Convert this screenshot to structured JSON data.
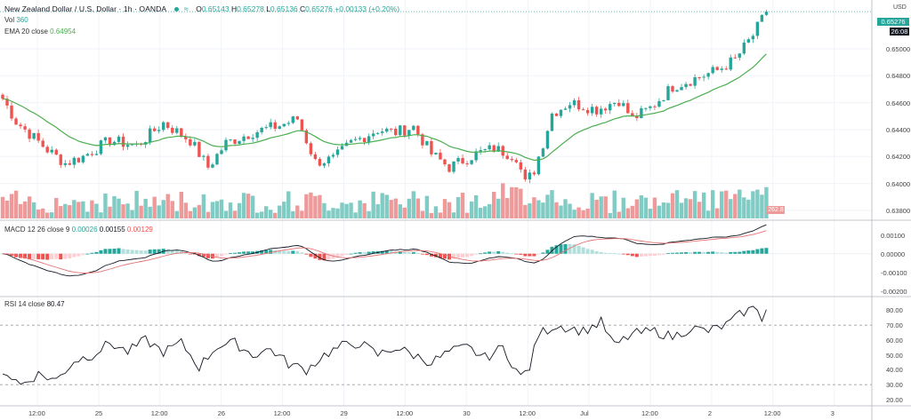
{
  "header": {
    "symbol": "New Zealand Dollar / U.S. Dollar · 1h · OANDA",
    "open_label": "O",
    "open": "0.65143",
    "high_label": "H",
    "high": "0.65278",
    "low_label": "L",
    "low": "0.65136",
    "close_label": "C",
    "close": "0.65276",
    "change": "+0.00133 (+0.20%)",
    "icon": "wave-icon"
  },
  "volume": {
    "label": "Vol",
    "value": "360",
    "last_tag": "262.8"
  },
  "ema": {
    "label": "EMA 20 close",
    "value": "0.64954"
  },
  "macd": {
    "label": "MACD 12 26 close 9",
    "v1": "0.00026",
    "v2": "0.00155",
    "v3": "0.00129"
  },
  "rsi": {
    "label": "RSI 14 close",
    "value": "80.47"
  },
  "currency": "USD",
  "price_tags": {
    "current": "0.65276",
    "timer": "26:08"
  },
  "colors": {
    "up": "#26a69a",
    "down": "#ef5350",
    "ema": "#4caf50",
    "macd": "#131722",
    "signal": "#e57373",
    "rsi": "#131722"
  },
  "chart_data": [
    {
      "type": "candlestick",
      "title": "New Zealand Dollar / U.S. Dollar · 1h · OANDA",
      "y_ticks": [
        "0.65276",
        "0.65000",
        "0.64800",
        "0.64600",
        "0.64400",
        "0.64200",
        "0.64000",
        "0.63800"
      ],
      "ylim": [
        0.6374,
        0.6531
      ],
      "x_ticks": [
        "12:00",
        "25",
        "12:00",
        "26",
        "12:00",
        "29",
        "12:00",
        "30",
        "12:00",
        "Jul",
        "12:00",
        "2",
        "12:00",
        "3"
      ],
      "close_anchors": [
        [
          0,
          0.6463
        ],
        [
          3,
          0.6446
        ],
        [
          10,
          0.6425
        ],
        [
          14,
          0.6415
        ],
        [
          18,
          0.642
        ],
        [
          24,
          0.6432
        ],
        [
          30,
          0.6428
        ],
        [
          36,
          0.6445
        ],
        [
          42,
          0.6432
        ],
        [
          46,
          0.6412
        ],
        [
          50,
          0.643
        ],
        [
          56,
          0.6438
        ],
        [
          62,
          0.6443
        ],
        [
          66,
          0.6448
        ],
        [
          70,
          0.6416
        ],
        [
          74,
          0.6418
        ],
        [
          78,
          0.643
        ],
        [
          84,
          0.644
        ],
        [
          88,
          0.6438
        ],
        [
          92,
          0.6442
        ],
        [
          96,
          0.6422
        ],
        [
          100,
          0.6412
        ],
        [
          106,
          0.6422
        ],
        [
          110,
          0.6426
        ],
        [
          115,
          0.642
        ],
        [
          117,
          0.64
        ],
        [
          119,
          0.641
        ],
        [
          121,
          0.643
        ],
        [
          123,
          0.6452
        ],
        [
          127,
          0.646
        ],
        [
          133,
          0.6455
        ],
        [
          138,
          0.6462
        ],
        [
          141,
          0.6448
        ],
        [
          145,
          0.6456
        ],
        [
          150,
          0.6472
        ],
        [
          155,
          0.6478
        ],
        [
          160,
          0.6484
        ],
        [
          164,
          0.6492
        ],
        [
          168,
          0.651
        ],
        [
          171,
          0.65276
        ]
      ],
      "ema_series_name": "EMA 20 close"
    },
    {
      "type": "bar",
      "title": "Vol",
      "value_last": "360"
    },
    {
      "type": "line",
      "title": "MACD 12 26 close 9",
      "y_ticks": [
        "0.00100",
        "0.00000",
        "-0.00100",
        "-0.00200"
      ],
      "ylim": [
        -0.0022,
        0.0017
      ],
      "series": [
        {
          "name": "MACD",
          "last": 0.00155
        },
        {
          "name": "Signal",
          "last": 0.00129
        },
        {
          "name": "Histogram",
          "last": 0.00026
        }
      ]
    },
    {
      "type": "line",
      "title": "RSI 14 close",
      "y_ticks": [
        "80.00",
        "70.00",
        "60.00",
        "50.00",
        "40.00",
        "30.00",
        "20.00"
      ],
      "ylim": [
        17,
        88
      ],
      "bands": [
        70,
        30
      ],
      "anchors": [
        [
          0,
          40
        ],
        [
          4,
          30
        ],
        [
          8,
          37
        ],
        [
          12,
          33
        ],
        [
          16,
          46
        ],
        [
          20,
          50
        ],
        [
          24,
          58
        ],
        [
          28,
          52
        ],
        [
          32,
          60
        ],
        [
          36,
          52
        ],
        [
          40,
          58
        ],
        [
          44,
          42
        ],
        [
          48,
          56
        ],
        [
          52,
          58
        ],
        [
          56,
          50
        ],
        [
          60,
          54
        ],
        [
          64,
          44
        ],
        [
          68,
          40
        ],
        [
          72,
          50
        ],
        [
          76,
          56
        ],
        [
          80,
          58
        ],
        [
          84,
          50
        ],
        [
          88,
          55
        ],
        [
          92,
          50
        ],
        [
          96,
          45
        ],
        [
          100,
          52
        ],
        [
          104,
          55
        ],
        [
          108,
          48
        ],
        [
          112,
          55
        ],
        [
          116,
          35
        ],
        [
          118,
          42
        ],
        [
          120,
          64
        ],
        [
          124,
          70
        ],
        [
          130,
          66
        ],
        [
          134,
          72
        ],
        [
          137,
          56
        ],
        [
          141,
          64
        ],
        [
          146,
          66
        ],
        [
          150,
          62
        ],
        [
          154,
          68
        ],
        [
          158,
          66
        ],
        [
          162,
          70
        ],
        [
          166,
          79
        ],
        [
          169,
          82
        ],
        [
          170,
          75
        ],
        [
          171,
          80.47
        ]
      ]
    }
  ]
}
